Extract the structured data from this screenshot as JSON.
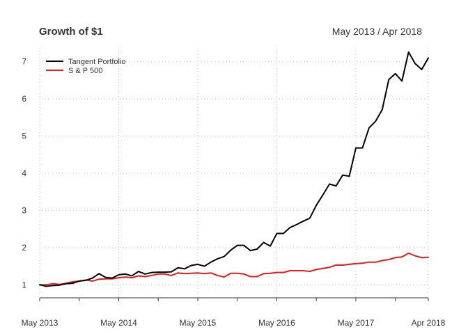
{
  "chart_data": {
    "type": "line",
    "title": "Growth of $1",
    "subtitle": "May 2013 / Apr 2018",
    "xlabel": "",
    "ylabel": "",
    "ylim": [
      0.65,
      7.35
    ],
    "yticks": [
      1,
      2,
      3,
      4,
      5,
      6,
      7
    ],
    "xlim": [
      "2013-05",
      "2018-04"
    ],
    "xtick_labels": [
      "May 2013",
      "May 2014",
      "May 2015",
      "May 2016",
      "May 2017",
      "Apr 2018"
    ],
    "grid": true,
    "legend_position": "top-left",
    "x": [
      "2013-05",
      "2013-06",
      "2013-07",
      "2013-08",
      "2013-09",
      "2013-10",
      "2013-11",
      "2013-12",
      "2014-01",
      "2014-02",
      "2014-03",
      "2014-04",
      "2014-05",
      "2014-06",
      "2014-07",
      "2014-08",
      "2014-09",
      "2014-10",
      "2014-11",
      "2014-12",
      "2015-01",
      "2015-02",
      "2015-03",
      "2015-04",
      "2015-05",
      "2015-06",
      "2015-07",
      "2015-08",
      "2015-09",
      "2015-10",
      "2015-11",
      "2015-12",
      "2016-01",
      "2016-02",
      "2016-03",
      "2016-04",
      "2016-05",
      "2016-06",
      "2016-07",
      "2016-08",
      "2016-09",
      "2016-10",
      "2016-11",
      "2016-12",
      "2017-01",
      "2017-02",
      "2017-03",
      "2017-04",
      "2017-05",
      "2017-06",
      "2017-07",
      "2017-08",
      "2017-09",
      "2017-10",
      "2017-11",
      "2017-12",
      "2018-01",
      "2018-02",
      "2018-03",
      "2018-04"
    ],
    "series": [
      {
        "name": "Tangent Portfolio",
        "color": "#000000",
        "values": [
          1.0,
          0.96,
          0.98,
          0.99,
          1.03,
          1.04,
          1.1,
          1.12,
          1.18,
          1.3,
          1.2,
          1.18,
          1.27,
          1.29,
          1.24,
          1.36,
          1.29,
          1.33,
          1.34,
          1.34,
          1.35,
          1.46,
          1.43,
          1.52,
          1.55,
          1.5,
          1.61,
          1.7,
          1.76,
          1.93,
          2.06,
          2.06,
          1.92,
          1.96,
          2.14,
          2.04,
          2.38,
          2.38,
          2.54,
          2.62,
          2.71,
          2.79,
          3.14,
          3.42,
          3.71,
          3.66,
          3.95,
          3.92,
          4.68,
          4.68,
          5.22,
          5.4,
          5.71,
          6.52,
          6.68,
          6.48,
          7.26,
          6.95,
          6.79,
          7.1
        ]
      },
      {
        "name": "S & P 500",
        "color": "#e31a1c",
        "values": [
          1.0,
          1.0,
          1.03,
          1.01,
          1.04,
          1.08,
          1.1,
          1.13,
          1.1,
          1.15,
          1.16,
          1.16,
          1.19,
          1.21,
          1.19,
          1.24,
          1.22,
          1.25,
          1.29,
          1.29,
          1.25,
          1.32,
          1.3,
          1.31,
          1.32,
          1.3,
          1.32,
          1.25,
          1.21,
          1.31,
          1.31,
          1.29,
          1.22,
          1.22,
          1.3,
          1.31,
          1.33,
          1.33,
          1.38,
          1.38,
          1.38,
          1.36,
          1.41,
          1.44,
          1.47,
          1.53,
          1.53,
          1.55,
          1.57,
          1.58,
          1.61,
          1.61,
          1.65,
          1.68,
          1.73,
          1.75,
          1.85,
          1.78,
          1.73,
          1.74
        ]
      }
    ]
  }
}
